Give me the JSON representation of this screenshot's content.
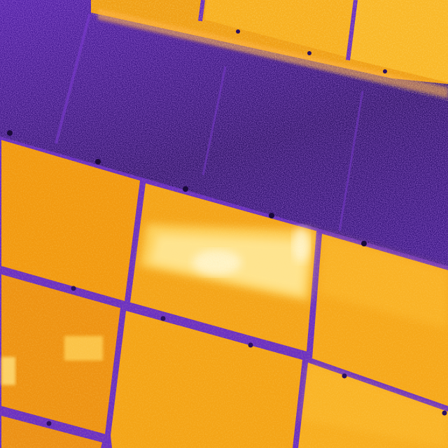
{
  "image": {
    "subject": "thermal-aerial-view-solar-panel-rows",
    "palette": {
      "ground_dark": "#1c0b3d",
      "ground_mid": "#3a148a",
      "ground_violet": "#5b22b5",
      "frame_purple": "#6a2fc2",
      "panel_orange_dark": "#e8860c",
      "panel_orange": "#f5a012",
      "panel_yellow": "#ffc53a",
      "hotspot_light": "#ffe89a",
      "hotspot_white": "#fff8d8",
      "debris_warm": "#ffb347"
    }
  }
}
